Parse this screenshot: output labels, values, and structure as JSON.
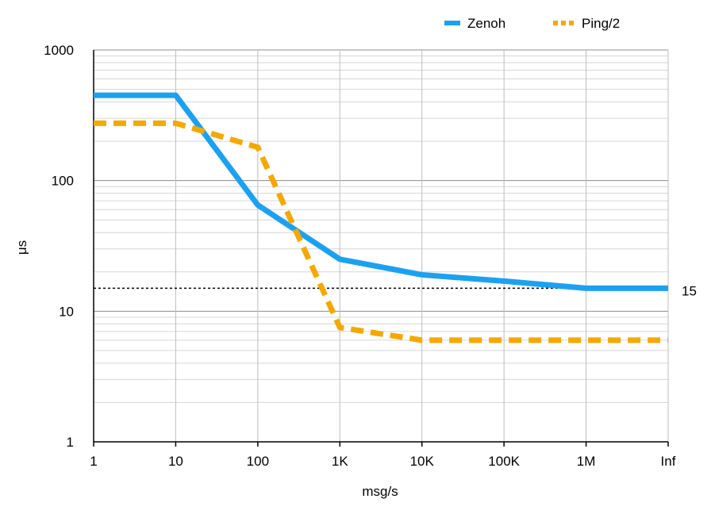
{
  "chart_data": {
    "type": "line",
    "title": "",
    "xlabel": "msg/s",
    "ylabel": "μs",
    "x_categories": [
      "1",
      "10",
      "100",
      "1K",
      "10K",
      "100K",
      "1M",
      "Inf"
    ],
    "y_scale": "log",
    "ylim": [
      1,
      1000
    ],
    "y_ticks": [
      "1",
      "10",
      "100",
      "1000"
    ],
    "grid": true,
    "legend_position": "top-right",
    "series": [
      {
        "name": "Zenoh",
        "color": "#1ba1f2",
        "style": "solid",
        "values": [
          450,
          450,
          65,
          25,
          19,
          17,
          15,
          15
        ]
      },
      {
        "name": "Ping/2",
        "color": "#f5a800",
        "style": "dashed",
        "values": [
          275,
          275,
          180,
          7.5,
          6,
          6,
          6,
          6
        ]
      }
    ],
    "reference_line": {
      "value": 15,
      "label": "15",
      "style": "dotted",
      "color": "#000000"
    }
  }
}
